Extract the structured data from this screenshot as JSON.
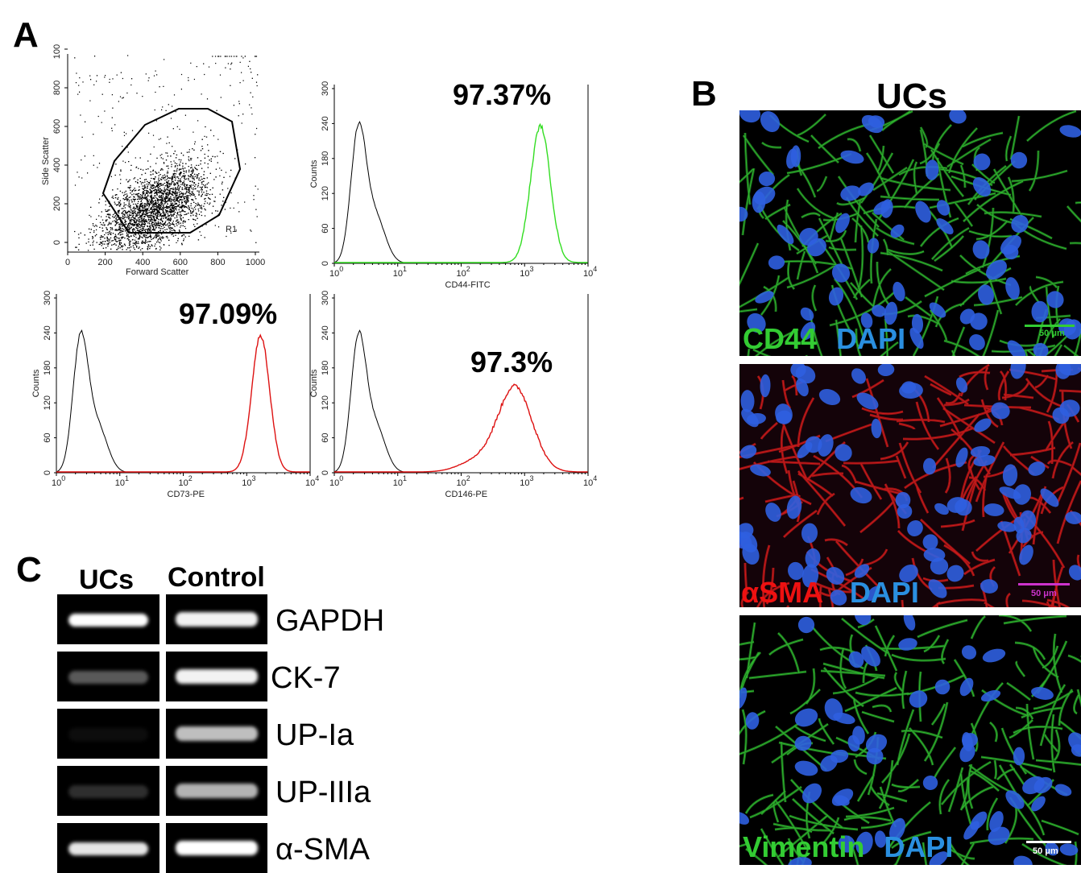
{
  "panels": {
    "A": "A",
    "B": "B",
    "C": "C"
  },
  "scatter": {
    "title_y": "Side Scatter",
    "title_x": "Forward Scatter",
    "gate_label": "R1",
    "x_ticks": [
      "0",
      "200",
      "400",
      "600",
      "800",
      "1000"
    ],
    "y_ticks": [
      "0",
      "200",
      "400",
      "600",
      "800",
      "1000"
    ]
  },
  "histograms": [
    {
      "id": "cd44",
      "xlabel": "CD44-FITC",
      "ylabel": "Counts",
      "percent": "97.37%",
      "color": "#33dd22",
      "y_ticks": [
        "0",
        "60",
        "120",
        "180",
        "240",
        "300"
      ]
    },
    {
      "id": "cd73",
      "xlabel": "CD73-PE",
      "ylabel": "Counts",
      "percent": "97.09%",
      "color": "#dd1111",
      "y_ticks": [
        "0",
        "60",
        "120",
        "180",
        "240",
        "300"
      ]
    },
    {
      "id": "cd146",
      "xlabel": "CD146-PE",
      "ylabel": "Counts",
      "percent": "97.3%",
      "color": "#dd1111",
      "y_ticks": [
        "0",
        "60",
        "120",
        "180",
        "240",
        "300"
      ]
    }
  ],
  "panel_b": {
    "title": "UCs",
    "images": [
      {
        "marker": "CD44",
        "marker_color": "#33cc33",
        "counter": "DAPI",
        "counter_color": "#2a8fe0",
        "scale": "50 μm",
        "scale_color": "#33cc33"
      },
      {
        "marker": "αSMA",
        "marker_color": "#ee1111",
        "counter": "DAPI",
        "counter_color": "#2a8fe0",
        "scale": "50 μm",
        "scale_color": "#cc33cc"
      },
      {
        "marker": "Vimentin",
        "marker_color": "#33cc33",
        "counter": "DAPI",
        "counter_color": "#2a8fe0",
        "scale": "50 μm",
        "scale_color": "#ffffff"
      }
    ]
  },
  "panel_c": {
    "col_ucs": "UCs",
    "col_control": "Control",
    "genes": [
      "GAPDH",
      "CK-7",
      "UP-Ia",
      "UP-IIIa",
      "α-SMA"
    ]
  }
}
